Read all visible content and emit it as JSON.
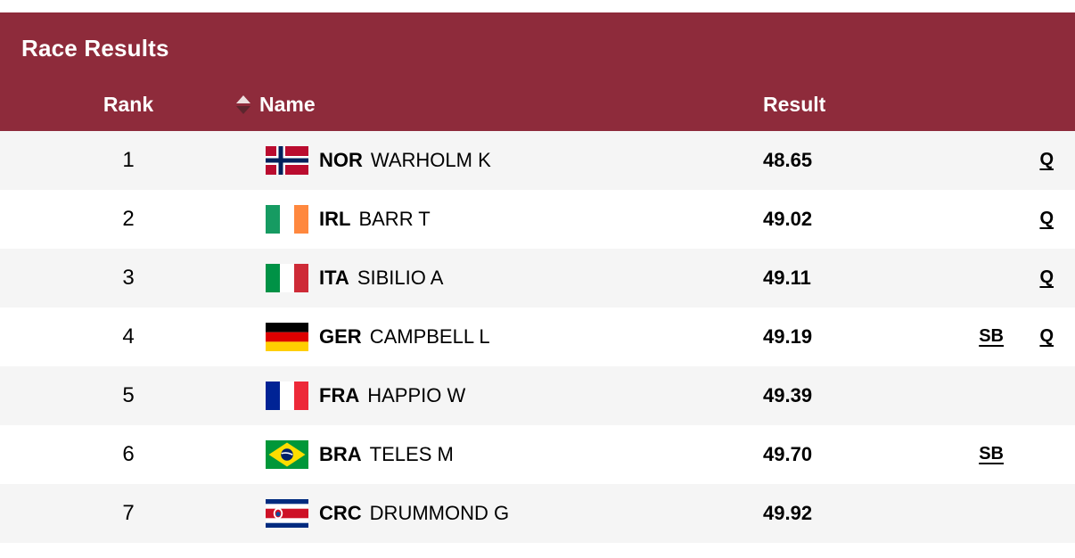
{
  "page": {
    "title": "Race Results"
  },
  "table": {
    "headers": {
      "rank": "Rank",
      "name": "Name",
      "result": "Result"
    },
    "sort": {
      "column": "rank",
      "direction": "ascending"
    },
    "rows": [
      {
        "rank": "1",
        "country": "NOR",
        "name": "WARHOLM K",
        "result": "48.65",
        "sb": "",
        "q": "Q"
      },
      {
        "rank": "2",
        "country": "IRL",
        "name": "BARR T",
        "result": "49.02",
        "sb": "",
        "q": "Q"
      },
      {
        "rank": "3",
        "country": "ITA",
        "name": "SIBILIO A",
        "result": "49.11",
        "sb": "",
        "q": "Q"
      },
      {
        "rank": "4",
        "country": "GER",
        "name": "CAMPBELL L",
        "result": "49.19",
        "sb": "SB",
        "q": "Q"
      },
      {
        "rank": "5",
        "country": "FRA",
        "name": "HAPPIO W",
        "result": "49.39",
        "sb": "",
        "q": ""
      },
      {
        "rank": "6",
        "country": "BRA",
        "name": "TELES M",
        "result": "49.70",
        "sb": "SB",
        "q": ""
      },
      {
        "rank": "7",
        "country": "CRC",
        "name": "DRUMMOND G",
        "result": "49.92",
        "sb": "",
        "q": ""
      }
    ]
  },
  "colors": {
    "header_bg": "#8E2B3B",
    "header_text": "#FFFFFF",
    "row_bg": "#FFFFFF",
    "row_alt_bg": "#F5F5F5",
    "text": "#000000",
    "sort_up": "#EDE0E0",
    "sort_down": "#5C262E"
  }
}
